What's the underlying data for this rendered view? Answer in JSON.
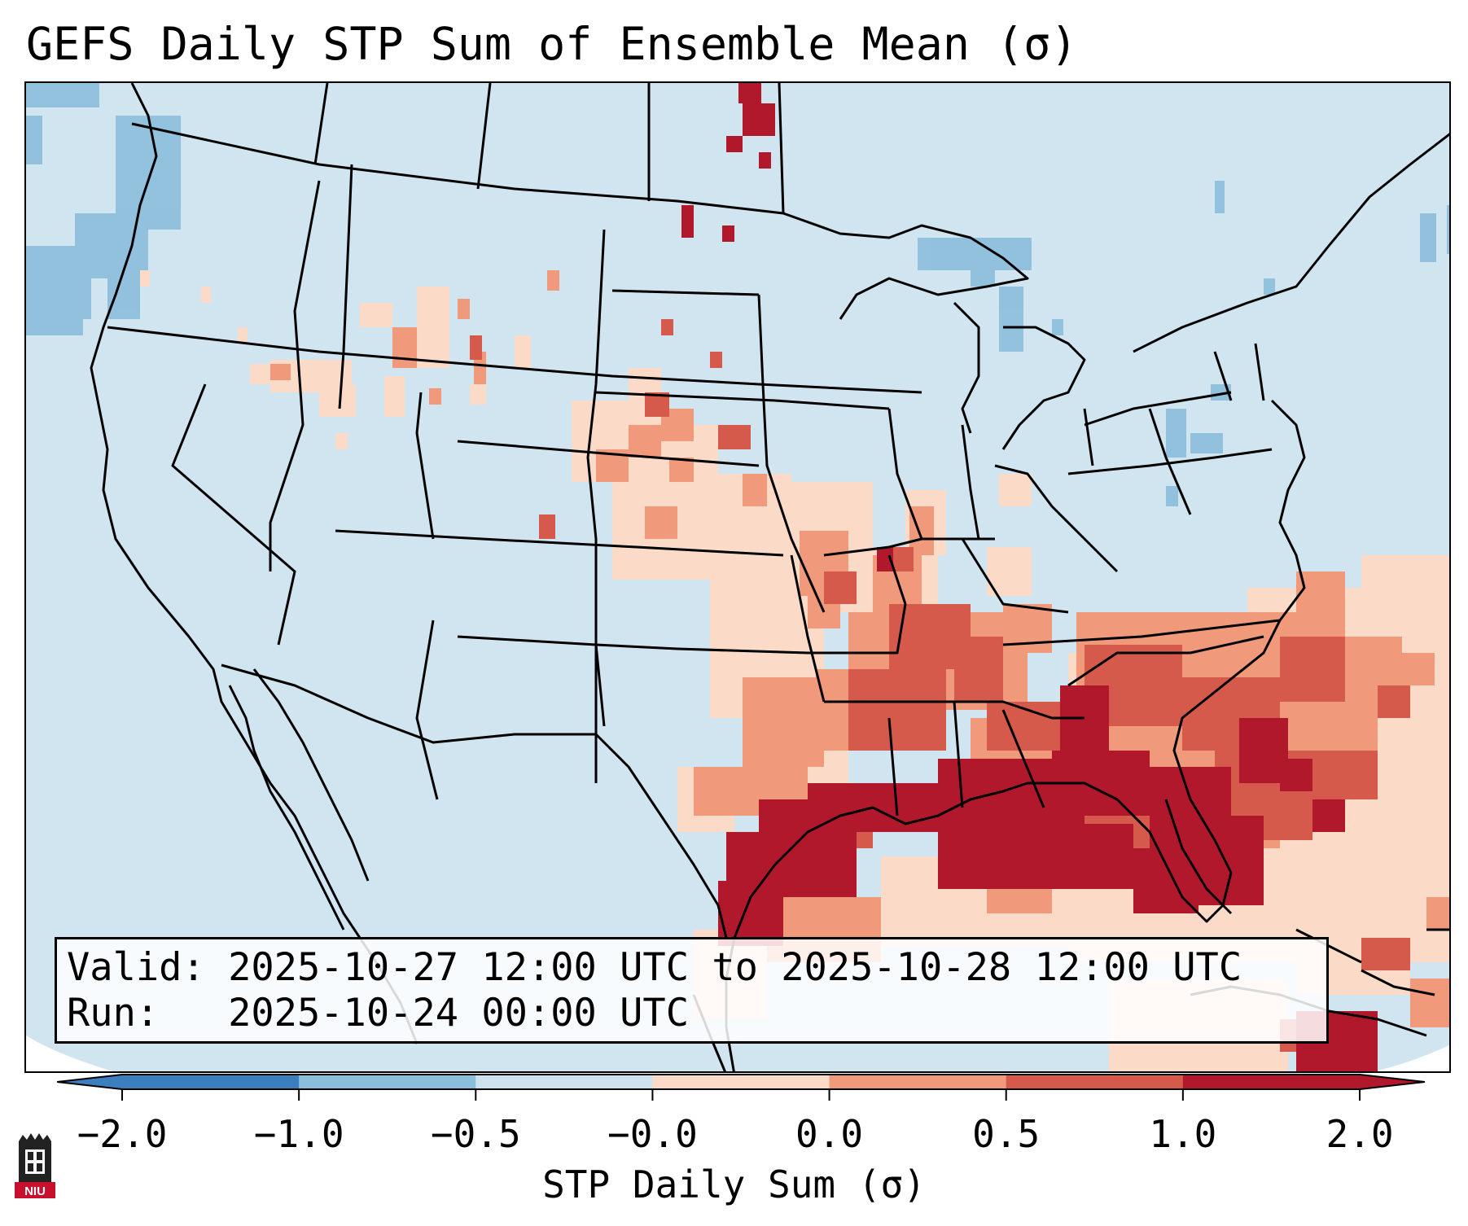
{
  "title": "GEFS Daily STP Sum of Ensemble Mean (σ)",
  "info": {
    "valid_label": "Valid:",
    "valid_value": "2025-10-27 12:00 UTC to 2025-10-28 12:00 UTC",
    "run_label": "Run:",
    "run_value": "2025-10-24 00:00 UTC"
  },
  "colorbar": {
    "label": "STP Daily Sum (σ)",
    "ticks": [
      "−2.0",
      "−1.0",
      "−0.5",
      "−0.0",
      "0.0",
      "0.5",
      "1.0",
      "2.0"
    ],
    "colors": [
      "#3b7fbf",
      "#8bbedb",
      "#cfe3ef",
      "#fbdbc7",
      "#f0997b",
      "#d55a4c",
      "#b2182b"
    ],
    "extend": "both"
  },
  "map": {
    "projection": "Lambert conformal, CONUS",
    "background_color": "#d1e5f0",
    "boundaries": "US states, Canada, Mexico, Cuba coastlines"
  },
  "logo": {
    "text": "NIU"
  }
}
